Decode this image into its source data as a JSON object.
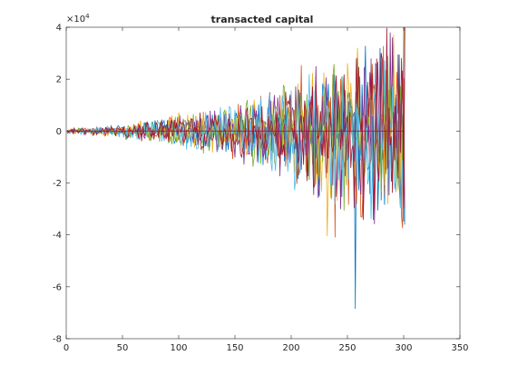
{
  "chart_data": {
    "type": "line",
    "title": "transacted capital",
    "xlabel": "",
    "ylabel": "",
    "xlim": [
      0,
      350
    ],
    "ylim": [
      -80000,
      40000
    ],
    "x_ticks": [
      0,
      50,
      100,
      150,
      200,
      250,
      300,
      350
    ],
    "y_ticks": [
      -80000,
      -60000,
      -40000,
      -20000,
      0,
      20000,
      40000
    ],
    "y_tick_labels": [
      "-8",
      "-6",
      "-4",
      "-2",
      "0",
      "2",
      "4"
    ],
    "y_exponent_label": "×10",
    "y_exponent_power": "4",
    "grid": false,
    "legend": "none",
    "x_range": [
      1,
      301
    ],
    "n_series_approx": 7,
    "series_colors": [
      "#0072bd",
      "#d95319",
      "#edb120",
      "#7e2f8e",
      "#77ac30",
      "#4dbeee",
      "#a2142f"
    ],
    "envelope": {
      "x": [
        0,
        25,
        50,
        75,
        100,
        125,
        150,
        175,
        200,
        225,
        250,
        275,
        300
      ],
      "upper": [
        1000,
        1500,
        2500,
        4000,
        6000,
        8000,
        11000,
        14000,
        19000,
        24000,
        28000,
        33000,
        40000
      ],
      "lower": [
        -1000,
        -1500,
        -2500,
        -4000,
        -6000,
        -8000,
        -11000,
        -14000,
        -20000,
        -26000,
        -32000,
        -38000,
        -40000
      ]
    },
    "notable_points": [
      {
        "x": 257,
        "y": -68500
      },
      {
        "x": 239,
        "y": -41000
      },
      {
        "x": 232,
        "y": -40500
      },
      {
        "x": 288,
        "y": 38000
      },
      {
        "x": 300,
        "y": 40000
      }
    ]
  }
}
